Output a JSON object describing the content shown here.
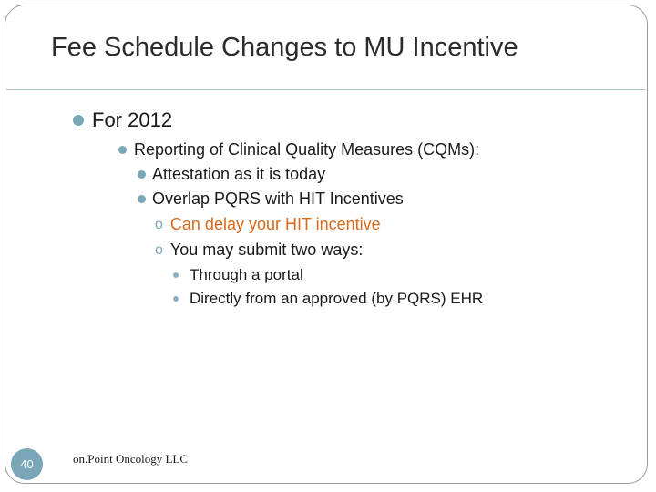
{
  "slide": {
    "title": "Fee Schedule Changes to MU Incentive",
    "bullets": {
      "level1": "For 2012",
      "level2": "Reporting of Clinical Quality Measures (CQMs):",
      "level3": [
        "Attestation as it is today",
        "Overlap PQRS with HIT Incentives"
      ],
      "level4_marker": "o",
      "level4": [
        "Can delay your HIT incentive",
        "You may submit two ways:"
      ],
      "level5": [
        "Through a portal",
        "Directly from an approved (by PQRS) EHR"
      ]
    },
    "page_number": "40",
    "footer": "on.Point Oncology LLC"
  },
  "colors": {
    "accent": "#7aa7b8",
    "highlight_text": "#d9691b",
    "body_text": "#1a1a1a"
  }
}
